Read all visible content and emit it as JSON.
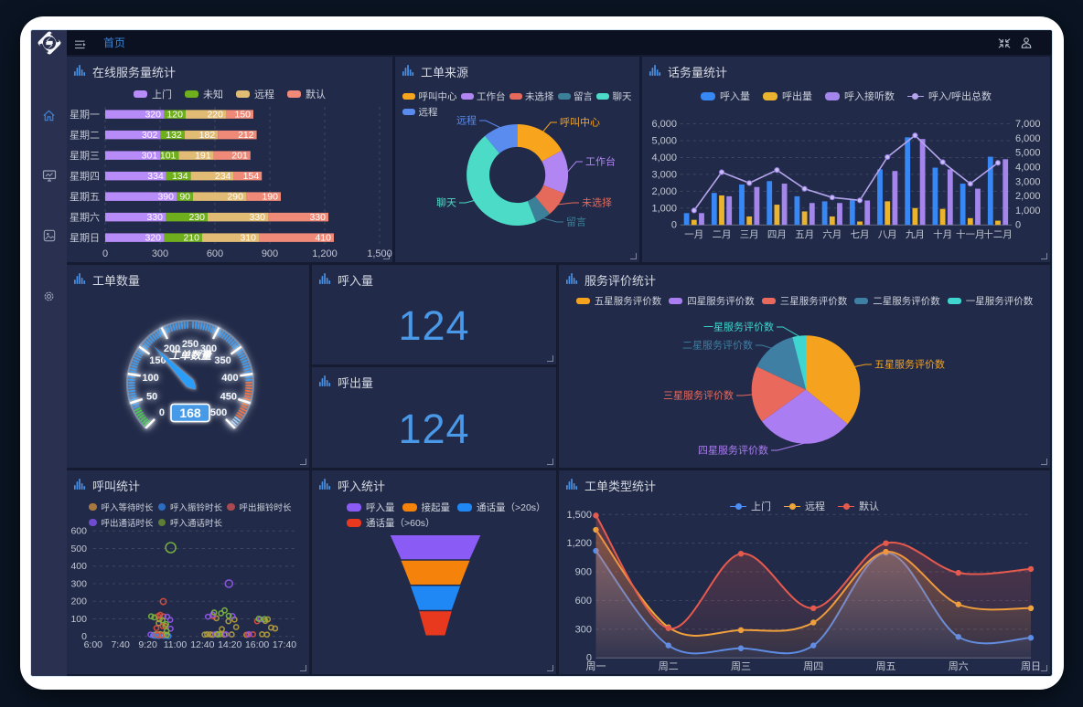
{
  "header": {
    "home_tab": "首页",
    "icons": {
      "toggle": "hamburger-icon",
      "exit_fullscreen": "compress-arrows-icon",
      "user": "user-icon"
    }
  },
  "sidebar": {
    "items": [
      {
        "name": "home",
        "active": true
      },
      {
        "name": "monitor",
        "active": false
      },
      {
        "name": "gallery",
        "active": false
      },
      {
        "name": "settings",
        "active": false
      }
    ]
  },
  "panels": {
    "online_service": {
      "title": "在线服务量统计"
    },
    "order_source": {
      "title": "工单来源"
    },
    "traffic": {
      "title": "话务量统计"
    },
    "order_count": {
      "title": "工单数量"
    },
    "inbound": {
      "title": "呼入量"
    },
    "outbound": {
      "title": "呼出量"
    },
    "service_rating": {
      "title": "服务评价统计"
    },
    "call_stats": {
      "title": "呼叫统计"
    },
    "inbound_stats": {
      "title": "呼入统计"
    },
    "order_type": {
      "title": "工单类型统计"
    }
  },
  "colors": {
    "page_bg": "#0a1423",
    "frame": "#ffffff",
    "sidebar_bg": "#2a3150",
    "header_bg": "#0c1122",
    "panel_bg": "#212a48",
    "content_bg": "#151b31",
    "accent_blue": "#3a84d6",
    "axis_text": "#c2c8d4",
    "title_text": "#d5d9e2"
  },
  "chart_data": [
    {
      "id": "online_service",
      "type": "bar",
      "orientation": "horizontal",
      "stacked": true,
      "title": "在线服务量统计",
      "categories": [
        "星期一",
        "星期二",
        "星期三",
        "星期四",
        "星期五",
        "星期六",
        "星期日"
      ],
      "series": [
        {
          "name": "上门",
          "color": "#b88cf8",
          "values": [
            320,
            302,
            301,
            334,
            390,
            330,
            320
          ]
        },
        {
          "name": "未知",
          "color": "#6fae1d",
          "values": [
            120,
            132,
            101,
            134,
            90,
            230,
            210
          ]
        },
        {
          "name": "远程",
          "color": "#e2bc74",
          "values": [
            220,
            182,
            191,
            234,
            290,
            330,
            310
          ]
        },
        {
          "name": "默认",
          "color": "#ef8a78",
          "values": [
            150,
            212,
            201,
            154,
            190,
            330,
            410
          ]
        }
      ],
      "xlim": [
        0,
        1500
      ],
      "xtick_labels": [
        "0",
        "300",
        "600",
        "900",
        "1,200",
        "1,500"
      ]
    },
    {
      "id": "order_source",
      "type": "pie",
      "donut": true,
      "title": "工单来源",
      "items": [
        {
          "name": "呼叫中心",
          "value": 17,
          "color": "#f8a41d",
          "label_at": [
            180,
            72,
            "start"
          ]
        },
        {
          "name": "工作台",
          "value": 14,
          "color": "#b186f2",
          "label_at": [
            208,
            115,
            "start"
          ]
        },
        {
          "name": "未选择",
          "value": 8,
          "color": "#e66a5c",
          "label_at": [
            204,
            160,
            "start"
          ]
        },
        {
          "name": "留言",
          "value": 5,
          "color": "#3b7f98",
          "label_at": [
            187,
            181,
            "start"
          ]
        },
        {
          "name": "聊天",
          "value": 45,
          "color": "#4cdbc6",
          "label_at": [
            67,
            160,
            "end"
          ]
        },
        {
          "name": "远程",
          "value": 11,
          "color": "#5a8bee",
          "label_at": [
            89,
            70,
            "end"
          ]
        }
      ]
    },
    {
      "id": "traffic",
      "type": "bar+line",
      "title": "话务量统计",
      "categories": [
        "一月",
        "二月",
        "三月",
        "四月",
        "五月",
        "六月",
        "七月",
        "八月",
        "九月",
        "十月",
        "十一月",
        "十二月"
      ],
      "series": [
        {
          "name": "呼入量",
          "kind": "bar",
          "color": "#3787f5",
          "values": [
            700,
            1900,
            2400,
            2600,
            1700,
            1400,
            1500,
            3300,
            5200,
            3400,
            2450,
            4050
          ]
        },
        {
          "name": "呼出量",
          "kind": "bar",
          "color": "#eab42f",
          "values": [
            300,
            1750,
            500,
            1200,
            800,
            500,
            200,
            1400,
            1000,
            950,
            400,
            250
          ]
        },
        {
          "name": "呼入接听数",
          "kind": "bar",
          "color": "#a385ec",
          "values": [
            700,
            1700,
            2250,
            2450,
            1300,
            1300,
            1450,
            3200,
            5100,
            3300,
            2150,
            3900
          ]
        },
        {
          "name": "呼入/呼出总数",
          "kind": "line",
          "axis": "right",
          "color": "#b4a4ec",
          "values": [
            1000,
            3650,
            2900,
            3800,
            2500,
            1900,
            1700,
            4700,
            6200,
            4350,
            2850,
            4300
          ]
        }
      ],
      "ylim_left": [
        0,
        6000
      ],
      "ylim_right": [
        0,
        7000
      ],
      "ytick_labels_left": [
        "0",
        "1,000",
        "2,000",
        "3,000",
        "4,000",
        "5,000",
        "6,000"
      ],
      "ytick_labels_right": [
        "0",
        "1,000",
        "2,000",
        "3,000",
        "4,000",
        "5,000",
        "6,000",
        "7,000"
      ]
    },
    {
      "id": "order_count",
      "type": "gauge",
      "title": "工单数量",
      "name_label": "工单数量",
      "value": 168,
      "min": 0,
      "max": 500,
      "tick_labels": [
        "0",
        "50",
        "100",
        "150",
        "200",
        "250",
        "300",
        "350",
        "400",
        "450",
        "500"
      ],
      "zones": [
        {
          "from": 0.0,
          "to": 0.072,
          "color": "#35d63a"
        },
        {
          "from": 0.072,
          "to": 0.822,
          "color": "#2da0f8"
        },
        {
          "from": 0.822,
          "to": 0.962,
          "color": "#ff6e27"
        },
        {
          "from": 0.962,
          "to": 1.0,
          "color": "#9fd3ff"
        }
      ],
      "needle_color": "#2b9df8",
      "badge_color": "#479ae8"
    },
    {
      "id": "inbound",
      "type": "stat",
      "title": "呼入量",
      "value": "124"
    },
    {
      "id": "outbound",
      "type": "stat",
      "title": "呼出量",
      "value": "124"
    },
    {
      "id": "service_rating",
      "type": "pie",
      "donut": false,
      "title": "服务评价统计",
      "items": [
        {
          "name": "五星服务评价数",
          "value": 36,
          "color": "#f5a31e",
          "label_at": [
            345,
            109,
            "start"
          ]
        },
        {
          "name": "四星服务评价数",
          "value": 29,
          "color": "#ab7df2",
          "label_at": [
            229,
            203,
            "end"
          ]
        },
        {
          "name": "三星服务评价数",
          "value": 17,
          "color": "#e9695c",
          "label_at": [
            191,
            143,
            "end"
          ]
        },
        {
          "name": "二星服务评价数",
          "value": 14,
          "color": "#3e7fa3",
          "label_at": [
            212,
            88,
            "end"
          ]
        },
        {
          "name": "一星服务评价数",
          "value": 4,
          "color": "#3ed6cf",
          "label_at": [
            235,
            68,
            "end"
          ]
        }
      ]
    },
    {
      "id": "call_stats",
      "type": "scatter",
      "title": "呼叫统计",
      "xtick_labels": [
        "6:00",
        "7:40",
        "9:20",
        "11:00",
        "12:40",
        "14:20",
        "16:00",
        "17:40"
      ],
      "xlim_hours": [
        6,
        17.667
      ],
      "ylim": [
        0,
        600
      ],
      "ytick_labels": [
        "0",
        "100",
        "200",
        "300",
        "400",
        "500",
        "600"
      ],
      "series": [
        {
          "name": "呼入等待时长",
          "color": "#a8793f",
          "point_color": "#b5a13e",
          "points": [
            [
              9.7,
              9
            ],
            [
              9.85,
              12
            ],
            [
              9.95,
              10
            ],
            [
              10.08,
              13
            ],
            [
              10.2,
              9
            ],
            [
              10.35,
              11
            ],
            [
              10.0,
              75
            ],
            [
              10.05,
              97
            ],
            [
              10.4,
              60
            ],
            [
              13.52,
              103
            ],
            [
              13.62,
              12
            ],
            [
              13.85,
              41
            ],
            [
              14.25,
              86
            ],
            [
              14.62,
              96
            ],
            [
              14.72,
              53
            ],
            [
              12.8,
              10
            ],
            [
              12.95,
              12
            ],
            [
              13.15,
              11
            ],
            [
              13.3,
              9
            ],
            [
              13.55,
              13
            ],
            [
              13.75,
              12
            ],
            [
              14.0,
              10
            ],
            [
              14.45,
              11
            ],
            [
              15.35,
              9
            ],
            [
              16.5,
              88
            ],
            [
              16.65,
              97
            ],
            [
              16.85,
              50
            ],
            [
              16.3,
              12
            ],
            [
              16.6,
              10
            ],
            [
              17.1,
              45
            ]
          ]
        },
        {
          "name": "呼入振铃时长",
          "color": "#2d6cc0",
          "point_color": "#3f7fe0",
          "points": [
            [
              9.8,
              3
            ],
            [
              10.0,
              2
            ],
            [
              10.3,
              3
            ],
            [
              10.6,
              2
            ],
            [
              9.65,
              5
            ],
            [
              10.45,
              4
            ]
          ]
        },
        {
          "name": "呼出振铃时长",
          "color": "#a84a50",
          "point_color": "#e0503c",
          "points": [
            [
              10.28,
              198,
              3.2
            ],
            [
              9.97,
              116
            ],
            [
              10.09,
              123
            ],
            [
              10.29,
              114
            ],
            [
              10.25,
              58
            ],
            [
              9.86,
              47
            ],
            [
              9.9,
              8
            ],
            [
              10.15,
              6
            ],
            [
              10.5,
              10
            ],
            [
              13.32,
              114
            ],
            [
              15.4,
              10
            ],
            [
              15.75,
              12
            ],
            [
              16.0,
              86
            ]
          ]
        },
        {
          "name": "呼出通话时长",
          "color": "#6f4bd0",
          "point_color": "#9458ec",
          "points": [
            [
              14.28,
              300,
              4
            ],
            [
              10.52,
              112
            ],
            [
              10.7,
              94
            ],
            [
              10.72,
              44
            ],
            [
              9.5,
              10
            ],
            [
              13.0,
              112
            ],
            [
              13.3,
              124
            ],
            [
              14.5,
              116
            ],
            [
              13.45,
              12
            ],
            [
              14.1,
              12
            ],
            [
              15.5,
              12
            ],
            [
              16.2,
              97
            ]
          ]
        },
        {
          "name": "呼入通话时长",
          "color": "#5d7e35",
          "point_color": "#7cb83e",
          "points": [
            [
              10.73,
              505,
              5.5
            ],
            [
              9.54,
              114
            ],
            [
              9.73,
              108
            ],
            [
              10.23,
              92
            ],
            [
              10.45,
              70
            ],
            [
              10.48,
              30
            ],
            [
              10.5,
              8
            ],
            [
              13.38,
              136
            ],
            [
              13.8,
              131
            ],
            [
              14.02,
              148
            ],
            [
              14.27,
              117
            ],
            [
              13.6,
              10
            ],
            [
              16.1,
              100
            ],
            [
              16.45,
              98
            ]
          ]
        }
      ]
    },
    {
      "id": "inbound_stats",
      "type": "funnel",
      "title": "呼入统计",
      "items": [
        {
          "name": "呼入量",
          "value": 100,
          "color": "#8a5cf5"
        },
        {
          "name": "接起量",
          "value": 76,
          "color": "#f5820b"
        },
        {
          "name": "通话量（>20s）",
          "value": 55,
          "color": "#2088f5"
        },
        {
          "name": "通话量（>60s）",
          "value": 36,
          "color": "#e8391e"
        }
      ],
      "min_width_pct": 21
    },
    {
      "id": "order_type",
      "type": "line",
      "smooth": true,
      "area": true,
      "title": "工单类型统计",
      "categories": [
        "周一",
        "周二",
        "周三",
        "周四",
        "周五",
        "周六",
        "周日"
      ],
      "series": [
        {
          "name": "上门",
          "color": "#4e8ef7",
          "values": [
            1120,
            130,
            100,
            130,
            1100,
            220,
            210
          ]
        },
        {
          "name": "远程",
          "color": "#f0a73a",
          "values": [
            1340,
            320,
            290,
            370,
            1110,
            560,
            520
          ]
        },
        {
          "name": "默认",
          "color": "#e65a4e",
          "values": [
            1490,
            310,
            1090,
            520,
            1200,
            890,
            930
          ]
        }
      ],
      "ylim": [
        0,
        1500
      ],
      "ytick_labels": [
        "0",
        "300",
        "600",
        "900",
        "1,200",
        "1,500"
      ]
    }
  ]
}
